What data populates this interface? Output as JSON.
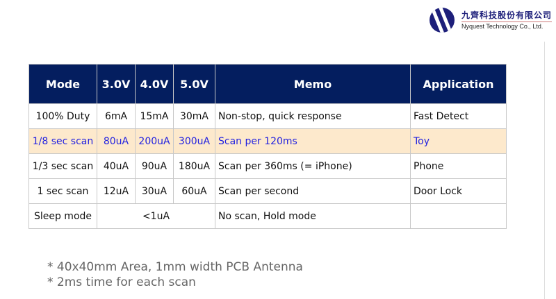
{
  "logo": {
    "chinese_name": "九齊科技股份有限公司",
    "english_name": "Nyquest Technology Co., Ltd.",
    "color": "#1d1f7a"
  },
  "table": {
    "headers": [
      "Mode",
      "3.0V",
      "4.0V",
      "5.0V",
      "Memo",
      "Application"
    ],
    "header_color": "#041e5f",
    "highlight_color": "#fde9cc",
    "highlight_text_color": "#2222e0",
    "rows": [
      {
        "mode": "100% Duty",
        "v30": "6mA",
        "v40": "15mA",
        "v50": "30mA",
        "memo": "Non-stop, quick response",
        "app": "Fast Detect"
      },
      {
        "mode": "1/8 sec scan",
        "v30": "80uA",
        "v40": "200uA",
        "v50": "300uA",
        "memo": "Scan per 120ms",
        "app": "Toy",
        "highlighted": true
      },
      {
        "mode": "1/3 sec scan",
        "v30": "40uA",
        "v40": "90uA",
        "v50": "180uA",
        "memo": "Scan per 360ms (= iPhone)",
        "app": "Phone"
      },
      {
        "mode": "1 sec scan",
        "v30": "12uA",
        "v40": "30uA",
        "v50": "60uA",
        "memo": "Scan per second",
        "app": "Door Lock"
      }
    ],
    "sleep_row": {
      "mode": "Sleep mode",
      "current": "<1uA",
      "memo": "No scan, Hold mode",
      "app": ""
    }
  },
  "notes": [
    "* 40x40mm Area, 1mm width PCB Antenna",
    "* 2ms time for each scan"
  ]
}
